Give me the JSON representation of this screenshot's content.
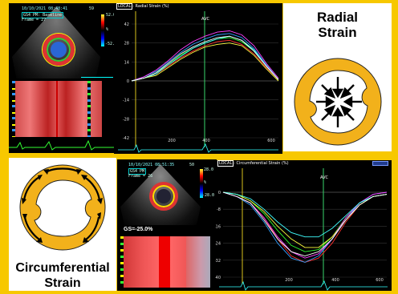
{
  "colors": {
    "frame": "#f7c800",
    "wall": "#f2b11b",
    "panel": "#000000",
    "avc_line": "#38d66b",
    "es_line": "#d9c21b"
  },
  "top": {
    "echo": {
      "date": "10/10/2021 08:48:41",
      "mode": "GS4 PM: Baseline",
      "frame": "Frame = 27",
      "cb_top": "59",
      "cb_mid1": "52.0",
      "cb_mid2": "%",
      "cb_bot": "-52.0"
    },
    "graph": {
      "header_local": "LOCAL",
      "header_title": ": Radial Strain (%)",
      "avc": "AVC",
      "y_ticks": [
        "42",
        "28",
        "14",
        "0",
        "-14",
        "-28",
        "-42"
      ],
      "x_ticks": [
        "200",
        "400",
        "600"
      ]
    },
    "diagram": {
      "label_line1": "Radial",
      "label_line2": "Strain",
      "icon": "inward-arrows-icon"
    }
  },
  "bottom": {
    "diagram": {
      "label_line1": "Circumferential",
      "label_line2": "Strain",
      "icon": "curved-arrows-icon"
    },
    "echo": {
      "date": "10/10/2021 08:51:35",
      "mode": "GS4 PM",
      "frame": "Frame = 26",
      "cb_top": "50",
      "cb_mid1": "28.0",
      "cb_mid2": "%",
      "cb_bot": "-28.0",
      "gs": "GS=-25.0%"
    },
    "graph": {
      "header_local": "LOCAL",
      "header_title": ": Circumferential Strain (%)",
      "avc": "AVC",
      "y_ticks": [
        "0",
        "-8",
        "-16",
        "-24",
        "-32",
        "-40"
      ],
      "x_ticks": [
        "200",
        "400",
        "600"
      ]
    }
  },
  "radial_series": [
    {
      "color": "#ff3030",
      "values": [
        0,
        2,
        5,
        11,
        17,
        22,
        26,
        29,
        30,
        27,
        20,
        10,
        1
      ]
    },
    {
      "color": "#30ff30",
      "values": [
        0,
        2,
        6,
        12,
        19,
        24,
        28,
        31,
        32,
        29,
        22,
        11,
        1
      ]
    },
    {
      "color": "#30a0ff",
      "values": [
        0,
        3,
        7,
        14,
        21,
        27,
        31,
        34,
        35,
        32,
        24,
        12,
        1
      ]
    },
    {
      "color": "#ffff40",
      "values": [
        0,
        2,
        4,
        10,
        16,
        21,
        25,
        27,
        28,
        26,
        19,
        9,
        0
      ]
    },
    {
      "color": "#ff40ff",
      "values": [
        0,
        3,
        8,
        15,
        23,
        29,
        33,
        36,
        37,
        34,
        26,
        13,
        2
      ]
    },
    {
      "color": "#40ffff",
      "values": [
        0,
        2,
        5,
        12,
        18,
        24,
        28,
        31,
        33,
        30,
        23,
        11,
        1
      ]
    },
    {
      "color": "#ffffff",
      "values": [
        0,
        2,
        6,
        13,
        20,
        25,
        29,
        32,
        33,
        30,
        22,
        11,
        1
      ]
    }
  ],
  "circ_series": [
    {
      "color": "#ff3030",
      "values": [
        0,
        -2,
        -5,
        -12,
        -22,
        -30,
        -33,
        -31,
        -24,
        -14,
        -6,
        -2,
        -1
      ]
    },
    {
      "color": "#30ff30",
      "values": [
        0,
        -1,
        -4,
        -10,
        -18,
        -25,
        -28,
        -27,
        -21,
        -12,
        -5,
        -2,
        -1
      ]
    },
    {
      "color": "#30a0ff",
      "values": [
        0,
        -2,
        -6,
        -14,
        -24,
        -31,
        -33,
        -30,
        -22,
        -13,
        -5,
        -1,
        0
      ]
    },
    {
      "color": "#ffff40",
      "values": [
        0,
        -1,
        -4,
        -9,
        -16,
        -22,
        -26,
        -26,
        -21,
        -13,
        -6,
        -2,
        -1
      ]
    },
    {
      "color": "#ff40ff",
      "values": [
        0,
        -2,
        -5,
        -12,
        -21,
        -28,
        -31,
        -29,
        -22,
        -12,
        -5,
        -1,
        0
      ]
    },
    {
      "color": "#40ffff",
      "values": [
        0,
        -1,
        -3,
        -8,
        -14,
        -19,
        -21,
        -21,
        -17,
        -11,
        -5,
        -2,
        -1
      ]
    },
    {
      "color": "#ffffff",
      "values": [
        0,
        -2,
        -5,
        -13,
        -22,
        -28,
        -30,
        -28,
        -22,
        -13,
        -6,
        -2,
        -1
      ]
    }
  ]
}
